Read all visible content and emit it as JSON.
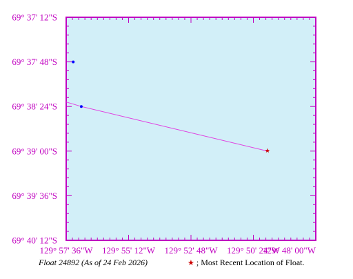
{
  "map": {
    "background_color": "#d2eff8",
    "frame_color": "#c000c0",
    "track_color": "#e040e0",
    "position_color": "#0000ff",
    "latest_color": "#cc0000",
    "lat_labels": [
      "69° 37' 12\"S",
      "69° 37' 48\"S",
      "69° 38' 24\"S",
      "69° 39' 00\"S",
      "69° 39' 36\"S",
      "69° 40' 12\"S"
    ],
    "lon_labels": [
      "129° 57' 36\"W",
      "129° 55' 12\"W",
      "129° 52' 48\"W",
      "129° 50' 24\"W",
      "129° 48' 00\"W"
    ],
    "lat_range_deg": [
      -69.67,
      -69.62
    ],
    "lon_range_deg": [
      -129.96,
      -129.8
    ],
    "track": [
      {
        "lon": -129.96,
        "lat": -69.639
      },
      {
        "lon": -129.9503,
        "lat": -69.64
      },
      {
        "lon": -129.831,
        "lat": -69.65
      }
    ],
    "positions": [
      {
        "lon": -129.9555,
        "lat": -69.63
      },
      {
        "lon": -129.9503,
        "lat": -69.64
      }
    ],
    "latest": {
      "lon": -129.831,
      "lat": -69.65
    }
  },
  "caption": {
    "float_label": "Float 24892 (As of 24 Feb 2026)",
    "legend_symbol": "★",
    "legend_text": "; Most Recent Location of Float."
  }
}
